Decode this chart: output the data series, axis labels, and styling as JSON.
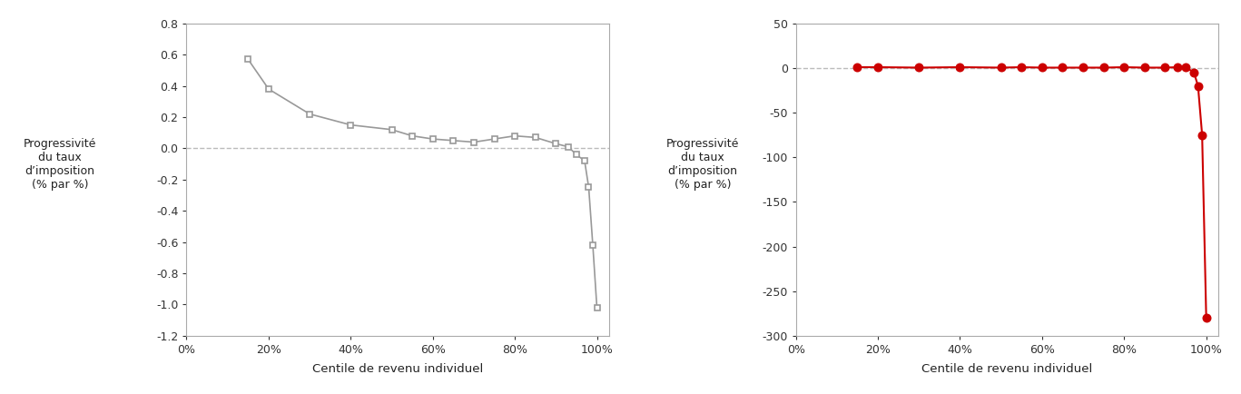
{
  "chart1": {
    "x": [
      0.15,
      0.2,
      0.3,
      0.4,
      0.5,
      0.55,
      0.6,
      0.65,
      0.7,
      0.75,
      0.8,
      0.85,
      0.9,
      0.93,
      0.95,
      0.97,
      0.98,
      0.99,
      1.0
    ],
    "y": [
      0.57,
      0.38,
      0.22,
      0.15,
      0.12,
      0.08,
      0.06,
      0.05,
      0.04,
      0.06,
      0.08,
      0.07,
      0.03,
      0.01,
      -0.04,
      -0.08,
      -0.25,
      -0.62,
      -1.02
    ],
    "color": "#999999",
    "marker": "s",
    "markersize": 5,
    "linewidth": 1.2,
    "ylim": [
      -1.2,
      0.8
    ],
    "yticks": [
      -1.2,
      -1.0,
      -0.8,
      -0.6,
      -0.4,
      -0.2,
      0.0,
      0.2,
      0.4,
      0.6,
      0.8
    ],
    "yticklabels": [
      "-1.2",
      "-1.0",
      "-0.8",
      "-0.6",
      "-0.4",
      "-0.2",
      "0.0",
      "0.2",
      "0.4",
      "0.6",
      "0.8"
    ],
    "ylabel": "Progressivité\ndu taux\nd’imposition\n(% par %)"
  },
  "chart2": {
    "x": [
      0.15,
      0.2,
      0.3,
      0.4,
      0.5,
      0.55,
      0.6,
      0.65,
      0.7,
      0.75,
      0.8,
      0.85,
      0.9,
      0.93,
      0.95,
      0.97,
      0.98,
      0.99,
      1.0
    ],
    "y": [
      1.0,
      1.0,
      0.5,
      1.0,
      0.5,
      1.0,
      0.5,
      0.5,
      0.5,
      0.5,
      1.0,
      0.5,
      0.5,
      1.0,
      1.0,
      -5.0,
      -20.0,
      -75.0,
      -280.0
    ],
    "color": "#cc0000",
    "marker": "o",
    "markersize": 6,
    "linewidth": 1.5,
    "ylim": [
      -300,
      50
    ],
    "yticks": [
      -300,
      -250,
      -200,
      -150,
      -100,
      -50,
      0,
      50
    ],
    "yticklabels": [
      "-300",
      "-250",
      "-200",
      "-150",
      "-100",
      "-50",
      "0",
      "50"
    ],
    "ylabel": "Progressivité\ndu taux\nd’imposition\n(% par %)"
  },
  "xlabel": "Centile de revenu individuel",
  "xticks": [
    0.0,
    0.2,
    0.4,
    0.6,
    0.8,
    1.0
  ],
  "xticklabels": [
    "0%",
    "20%",
    "40%",
    "60%",
    "80%",
    "100%"
  ],
  "dashed_color": "#bbbbbb",
  "background_color": "#ffffff",
  "spine_color": "#aaaaaa"
}
